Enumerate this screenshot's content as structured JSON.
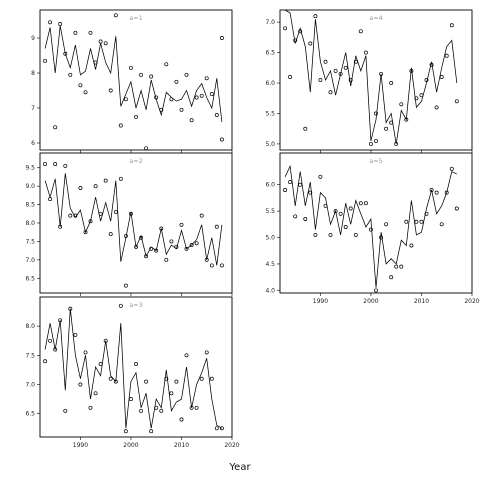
{
  "chart_data": {
    "type": "line",
    "xlabel": "Year",
    "x_ticks": [
      1990,
      2000,
      2010,
      2020
    ],
    "panels": [
      {
        "label": "a=1",
        "xlim": [
          1982,
          2020
        ],
        "ylim": [
          5.8,
          9.8
        ],
        "y_ticks": [
          6,
          7,
          8,
          9
        ],
        "series": [
          {
            "mark": "line",
            "x": [
              1983,
              1984,
              1985,
              1986,
              1987,
              1988,
              1989,
              1990,
              1991,
              1992,
              1993,
              1994,
              1995,
              1996,
              1997,
              1998,
              1999,
              2000,
              2001,
              2002,
              2003,
              2004,
              2005,
              2006,
              2007,
              2008,
              2009,
              2010,
              2011,
              2012,
              2013,
              2014,
              2015,
              2016,
              2017,
              2018
            ],
            "y": [
              8.7,
              9.3,
              8.0,
              9.35,
              8.55,
              8.15,
              8.8,
              7.95,
              8.05,
              8.7,
              8.1,
              8.85,
              8.3,
              8.0,
              9.05,
              7.05,
              7.4,
              7.75,
              7.0,
              7.5,
              6.95,
              7.8,
              7.25,
              6.8,
              7.45,
              7.3,
              7.2,
              7.25,
              7.5,
              7.05,
              7.5,
              7.7,
              7.3,
              7.0,
              7.85,
              6.6
            ]
          },
          {
            "mark": "points",
            "x": [
              1983,
              1984,
              1985,
              1986,
              1987,
              1988,
              1989,
              1990,
              1991,
              1992,
              1993,
              1994,
              1995,
              1996,
              1997,
              1998,
              1999,
              2000,
              2001,
              2002,
              2003,
              2004,
              2005,
              2006,
              2007,
              2008,
              2009,
              2010,
              2011,
              2012,
              2013,
              2014,
              2015,
              2016,
              2017,
              2018
            ],
            "y": [
              8.35,
              9.45,
              6.45,
              9.4,
              8.55,
              7.95,
              9.15,
              7.65,
              7.45,
              9.15,
              8.3,
              8.9,
              8.85,
              7.5,
              9.65,
              6.5,
              7.25,
              8.15,
              6.75,
              7.95,
              5.85,
              7.9,
              7.3,
              6.95,
              8.25,
              7.25,
              7.75,
              6.95,
              7.95,
              6.65,
              7.3,
              7.35,
              7.85,
              7.4,
              6.8,
              9.0
            ]
          },
          {
            "mark": "points",
            "x": [
              2018
            ],
            "y": [
              6.1
            ]
          }
        ]
      },
      {
        "label": "a=2",
        "xlim": [
          1982,
          2020
        ],
        "ylim": [
          6.1,
          9.9
        ],
        "y_ticks": [
          6.5,
          7.0,
          7.5,
          8.0,
          8.5,
          9.0,
          9.5
        ],
        "series": [
          {
            "mark": "line",
            "x": [
              1983,
              1984,
              1985,
              1986,
              1987,
              1988,
              1989,
              1990,
              1991,
              1992,
              1993,
              1994,
              1995,
              1996,
              1997,
              1998,
              1999,
              2000,
              2001,
              2002,
              2003,
              2004,
              2005,
              2006,
              2007,
              2008,
              2009,
              2010,
              2011,
              2012,
              2013,
              2014,
              2015,
              2016,
              2017,
              2018
            ],
            "y": [
              9.15,
              8.7,
              9.2,
              7.9,
              9.35,
              8.4,
              8.15,
              8.35,
              7.75,
              8.05,
              8.7,
              8.05,
              8.55,
              8.05,
              9.15,
              6.95,
              7.6,
              8.3,
              7.35,
              7.65,
              7.1,
              7.35,
              7.25,
              7.85,
              7.15,
              7.4,
              7.3,
              7.8,
              7.3,
              7.4,
              7.55,
              7.95,
              7.0,
              7.6,
              6.85,
              7.95
            ]
          },
          {
            "mark": "points",
            "x": [
              1983,
              1984,
              1985,
              1986,
              1987,
              1988,
              1989,
              1990,
              1991,
              1992,
              1993,
              1994,
              1995,
              1996,
              1997,
              1998,
              1999,
              2000,
              2001,
              2002,
              2003,
              2004,
              2005,
              2006,
              2007,
              2008,
              2009,
              2010,
              2011,
              2012,
              2013,
              2014,
              2015,
              2016,
              2017,
              2018
            ],
            "y": [
              9.6,
              8.65,
              9.6,
              7.9,
              9.55,
              8.2,
              8.2,
              8.95,
              7.75,
              8.05,
              9.0,
              8.25,
              9.15,
              7.7,
              8.3,
              9.2,
              7.65,
              8.25,
              7.35,
              7.6,
              7.1,
              7.3,
              7.25,
              7.85,
              7.0,
              7.5,
              7.35,
              7.95,
              7.3,
              7.4,
              7.45,
              8.2,
              7.0,
              6.85,
              7.9,
              6.85
            ]
          },
          {
            "mark": "points",
            "x": [
              1999
            ],
            "y": [
              6.3
            ]
          }
        ]
      },
      {
        "label": "a=3",
        "xlim": [
          1982,
          2020
        ],
        "ylim": [
          6.1,
          8.5
        ],
        "y_ticks": [
          6.5,
          7.0,
          7.5,
          8.0
        ],
        "series": [
          {
            "mark": "line",
            "x": [
              1983,
              1984,
              1985,
              1986,
              1987,
              1988,
              1989,
              1990,
              1991,
              1992,
              1993,
              1994,
              1995,
              1996,
              1997,
              1998,
              1999,
              2000,
              2001,
              2002,
              2003,
              2004,
              2005,
              2006,
              2007,
              2008,
              2009,
              2010,
              2011,
              2012,
              2013,
              2014,
              2015,
              2016,
              2017,
              2018
            ],
            "y": [
              7.6,
              8.05,
              7.6,
              8.1,
              6.9,
              8.3,
              7.5,
              7.1,
              7.5,
              6.75,
              7.3,
              7.15,
              7.75,
              7.15,
              7.05,
              8.05,
              6.25,
              7.05,
              7.2,
              6.6,
              6.85,
              6.25,
              6.75,
              6.6,
              7.25,
              6.55,
              6.7,
              6.75,
              7.3,
              6.6,
              7.0,
              7.2,
              7.45,
              6.75,
              6.3,
              6.25
            ]
          },
          {
            "mark": "points",
            "x": [
              1983,
              1984,
              1985,
              1986,
              1987,
              1988,
              1989,
              1990,
              1991,
              1992,
              1993,
              1994,
              1995,
              1996,
              1997,
              1998,
              1999,
              2000,
              2001,
              2002,
              2003,
              2004,
              2005,
              2006,
              2007,
              2008,
              2009,
              2010,
              2011,
              2012,
              2013,
              2014,
              2015,
              2016,
              2017,
              2018
            ],
            "y": [
              7.4,
              7.75,
              7.6,
              8.1,
              6.55,
              8.3,
              7.85,
              7.0,
              7.55,
              6.6,
              6.85,
              7.35,
              7.75,
              7.1,
              7.05,
              8.35,
              6.2,
              6.75,
              7.35,
              6.55,
              7.05,
              6.2,
              6.6,
              6.55,
              7.1,
              6.85,
              7.05,
              6.4,
              7.5,
              6.6,
              6.6,
              7.1,
              7.55,
              7.1,
              6.25,
              6.25
            ]
          }
        ]
      },
      {
        "label": "a=4",
        "xlim": [
          1982,
          2020
        ],
        "ylim": [
          4.9,
          7.2
        ],
        "y_ticks": [
          5.0,
          5.5,
          6.0,
          6.5,
          7.0
        ],
        "series": [
          {
            "mark": "line",
            "x": [
              1983,
              1984,
              1985,
              1986,
              1987,
              1988,
              1989,
              1990,
              1991,
              1992,
              1993,
              1994,
              1995,
              1996,
              1997,
              1998,
              1999,
              2000,
              2001,
              2002,
              2003,
              2004,
              2005,
              2006,
              2007,
              2008,
              2009,
              2010,
              2011,
              2012,
              2013,
              2014,
              2015,
              2016,
              2017,
              2018
            ],
            "y": [
              7.2,
              7.15,
              6.65,
              6.9,
              6.6,
              5.85,
              7.05,
              6.35,
              6.05,
              6.2,
              5.8,
              6.15,
              6.5,
              5.95,
              6.45,
              6.2,
              6.45,
              5.05,
              5.4,
              6.15,
              5.35,
              5.5,
              5.0,
              5.55,
              5.4,
              6.25,
              5.6,
              5.7,
              6.0,
              6.35,
              5.85,
              6.25,
              6.6,
              6.7,
              6.0,
              null
            ]
          },
          {
            "mark": "points",
            "x": [
              1983,
              1984,
              1985,
              1986,
              1987,
              1988,
              1989,
              1990,
              1991,
              1992,
              1993,
              1994,
              1995,
              1996,
              1997,
              1998,
              1999,
              2000,
              2001,
              2002,
              2003,
              2004,
              2005,
              2006,
              2007,
              2008,
              2009,
              2010,
              2011,
              2012,
              2013,
              2014,
              2015,
              2016,
              2017,
              2018
            ],
            "y": [
              6.9,
              6.1,
              6.7,
              6.85,
              5.25,
              6.65,
              7.1,
              6.05,
              6.35,
              5.85,
              6.2,
              6.15,
              6.25,
              6.05,
              6.35,
              6.85,
              6.5,
              5.0,
              5.5,
              6.15,
              5.25,
              6.0,
              5.0,
              5.65,
              5.4,
              6.2,
              5.75,
              5.8,
              6.05,
              6.3,
              5.6,
              6.1,
              6.45,
              6.95,
              5.7,
              null
            ]
          },
          {
            "mark": "points",
            "x": [
              2001,
              2004
            ],
            "y": [
              5.05,
              5.35
            ]
          }
        ]
      },
      {
        "label": "a=5",
        "xlim": [
          1982,
          2020
        ],
        "ylim": [
          3.95,
          6.6
        ],
        "y_ticks": [
          4.0,
          4.5,
          5.0,
          5.5,
          6.0
        ],
        "series": [
          {
            "mark": "line",
            "x": [
              1983,
              1984,
              1985,
              1986,
              1987,
              1988,
              1989,
              1990,
              1991,
              1992,
              1993,
              1994,
              1995,
              1996,
              1997,
              1998,
              1999,
              2000,
              2001,
              2002,
              2003,
              2004,
              2005,
              2006,
              2007,
              2008,
              2009,
              2010,
              2011,
              2012,
              2013,
              2014,
              2015,
              2016,
              2017,
              2018
            ],
            "y": [
              6.15,
              6.35,
              5.6,
              6.25,
              5.6,
              6.05,
              5.15,
              5.85,
              5.75,
              5.25,
              5.5,
              5.05,
              5.65,
              5.25,
              5.7,
              5.45,
              5.2,
              5.35,
              4.05,
              5.1,
              4.5,
              4.6,
              4.5,
              4.95,
              4.85,
              5.7,
              5.05,
              5.1,
              5.55,
              5.9,
              5.45,
              5.6,
              5.85,
              6.25,
              6.2,
              null
            ]
          },
          {
            "mark": "points",
            "x": [
              1983,
              1984,
              1985,
              1986,
              1987,
              1988,
              1989,
              1990,
              1991,
              1992,
              1993,
              1994,
              1995,
              1996,
              1997,
              1998,
              1999,
              2000,
              2001,
              2002,
              2003,
              2004,
              2005,
              2006,
              2007,
              2008,
              2009,
              2010,
              2011,
              2012,
              2013,
              2014,
              2015,
              2016,
              2017,
              2018
            ],
            "y": [
              5.9,
              6.05,
              5.4,
              6.0,
              5.35,
              5.85,
              5.05,
              6.15,
              5.6,
              5.05,
              5.5,
              5.45,
              5.2,
              5.55,
              5.05,
              5.65,
              5.65,
              5.15,
              4.0,
              5.0,
              5.25,
              4.25,
              4.45,
              4.45,
              5.3,
              4.85,
              5.3,
              5.3,
              5.45,
              5.9,
              5.85,
              5.25,
              5.85,
              6.3,
              5.55,
              null
            ]
          }
        ]
      }
    ]
  }
}
